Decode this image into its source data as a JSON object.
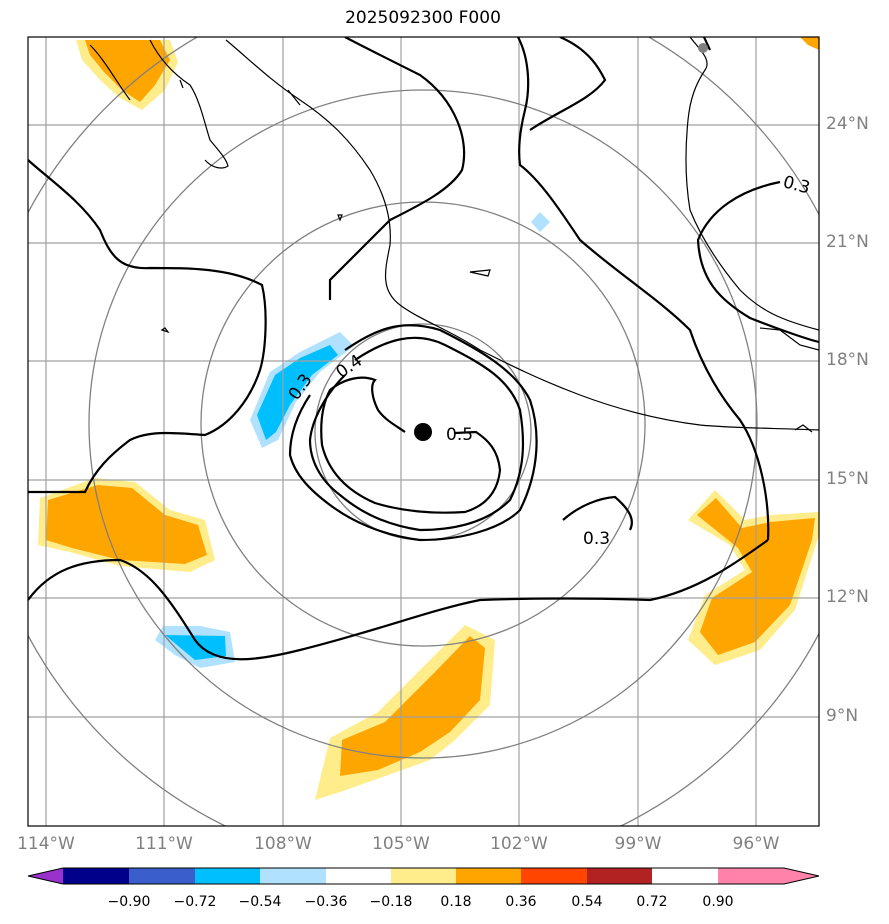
{
  "title": "2025092300 F000",
  "lat_labels": [
    "24°N",
    "21°N",
    "18°N",
    "15°N",
    "12°N",
    "9°N"
  ],
  "lon_labels": [
    "114°W",
    "111°W",
    "108°W",
    "105°W",
    "102°W",
    "99°W",
    "96°W"
  ],
  "contour_labels": [
    "0.3",
    "0.4",
    "0.5",
    "0.3",
    "0.3"
  ],
  "colorbar": {
    "ticks": [
      "−0.90",
      "−0.72",
      "−0.54",
      "−0.36",
      "−0.18",
      "0.18",
      "0.36",
      "0.54",
      "0.72",
      "0.90"
    ],
    "colors": [
      "#9932cc",
      "#00008b",
      "#3a5fcd",
      "#00bfff",
      "#b0e2ff",
      "#ffffff",
      "#ffec8b",
      "#ffa500",
      "#ff4500",
      "#b22222",
      "#ff82ab"
    ]
  },
  "colors": {
    "orange": "#ffa500",
    "light_yellow": "#ffec8b",
    "deep_sky_blue": "#00bfff",
    "light_blue": "#b0e2ff",
    "grid": "#808080"
  }
}
